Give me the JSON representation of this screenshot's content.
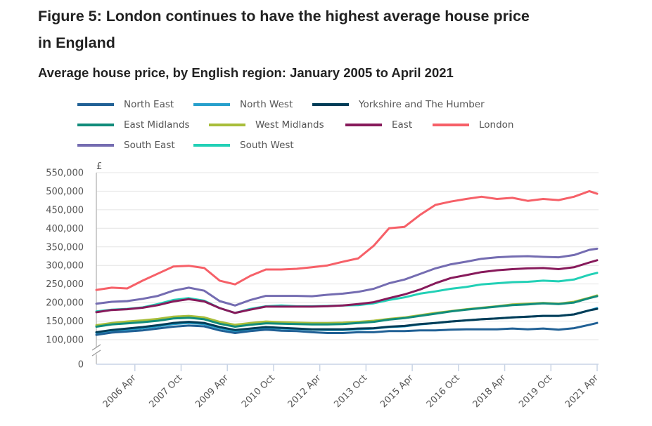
{
  "figure": {
    "title": "Figure 5: London continues to have the highest average house price in England",
    "subtitle": "Average house price, by English region: January 2005 to April 2021"
  },
  "chart_data": {
    "type": "line",
    "title": "Average house price, by English region: January 2005 to April 2021",
    "xlabel": "",
    "ylabel": "£",
    "ylim": [
      0,
      550000
    ],
    "y_axis_break": [
      0,
      100000
    ],
    "yticks": [
      0,
      100000,
      150000,
      200000,
      250000,
      300000,
      350000,
      400000,
      450000,
      500000,
      550000
    ],
    "ytick_labels": [
      "0",
      "100,000",
      "150,000",
      "200,000",
      "250,000",
      "300,000",
      "350,000",
      "400,000",
      "450,000",
      "500,000",
      "550,000"
    ],
    "xrange": [
      "2005 Jan",
      "2021 Apr"
    ],
    "xticks": [
      "2006 Apr",
      "2007 Oct",
      "2009 Apr",
      "2010 Oct",
      "2012 Apr",
      "2013 Oct",
      "2015 Apr",
      "2016 Oct",
      "2018 Apr",
      "2019 Oct",
      "2021 Apr"
    ],
    "grid": true,
    "legend_position": "top",
    "x": [
      "2005 Jan",
      "2005 Jul",
      "2006 Jan",
      "2006 Jul",
      "2007 Jan",
      "2007 Jul",
      "2008 Jan",
      "2008 Jul",
      "2009 Jan",
      "2009 Jul",
      "2010 Jan",
      "2010 Jul",
      "2011 Jan",
      "2011 Jul",
      "2012 Jan",
      "2012 Jul",
      "2013 Jan",
      "2013 Jul",
      "2014 Jan",
      "2014 Jul",
      "2015 Jan",
      "2015 Jul",
      "2016 Jan",
      "2016 Jul",
      "2017 Jan",
      "2017 Jul",
      "2018 Jan",
      "2018 Jul",
      "2019 Jan",
      "2019 Jul",
      "2020 Jan",
      "2020 Jul",
      "2021 Jan",
      "2021 Apr"
    ],
    "series": [
      {
        "name": "North East",
        "color": "#206095",
        "values": [
          113000,
          119000,
          122000,
          125000,
          130000,
          135000,
          138000,
          136000,
          125000,
          118000,
          123000,
          127000,
          124000,
          123000,
          120000,
          118000,
          118000,
          120000,
          120000,
          123000,
          123000,
          125000,
          125000,
          127000,
          128000,
          128000,
          128000,
          130000,
          128000,
          130000,
          127000,
          131000,
          140000,
          145000
        ]
      },
      {
        "name": "North West",
        "color": "#27a0cc",
        "values": [
          118000,
          123000,
          127000,
          131000,
          136000,
          142000,
          145000,
          142000,
          131000,
          123000,
          128000,
          132000,
          130000,
          129000,
          127000,
          126000,
          126000,
          128000,
          130000,
          134000,
          136000,
          141000,
          145000,
          149000,
          152000,
          155000,
          157000,
          160000,
          162000,
          164000,
          164000,
          168000,
          179000,
          185000
        ]
      },
      {
        "name": "Yorkshire and The Humber",
        "color": "#003c57",
        "values": [
          120000,
          126000,
          130000,
          134000,
          139000,
          145000,
          148000,
          145000,
          134000,
          126000,
          130000,
          134000,
          132000,
          130000,
          128000,
          128000,
          128000,
          130000,
          131000,
          135000,
          137000,
          142000,
          145000,
          149000,
          152000,
          155000,
          157000,
          160000,
          162000,
          164000,
          164000,
          168000,
          179000,
          183000
        ]
      },
      {
        "name": "East Midlands",
        "color": "#118c7b",
        "values": [
          135000,
          141000,
          144000,
          147000,
          151000,
          157000,
          159000,
          155000,
          143000,
          135000,
          140000,
          144000,
          143000,
          142000,
          141000,
          141000,
          142000,
          145000,
          148000,
          154000,
          158000,
          164000,
          170000,
          176000,
          181000,
          185000,
          189000,
          193000,
          195000,
          198000,
          196000,
          200000,
          212000,
          217000
        ]
      },
      {
        "name": "West Midlands",
        "color": "#a8bd3a",
        "values": [
          139000,
          145000,
          149000,
          152000,
          156000,
          162000,
          164000,
          160000,
          148000,
          140000,
          145000,
          149000,
          147000,
          146000,
          145000,
          145000,
          146000,
          148000,
          151000,
          156000,
          160000,
          166000,
          172000,
          177000,
          182000,
          186000,
          190000,
          195000,
          197000,
          199000,
          197000,
          202000,
          213000,
          219000
        ]
      },
      {
        "name": "East",
        "color": "#871a5b",
        "values": [
          174000,
          180000,
          182000,
          186000,
          193000,
          203000,
          209000,
          203000,
          185000,
          172000,
          181000,
          189000,
          189000,
          189000,
          189000,
          190000,
          192000,
          196000,
          201000,
          212000,
          222000,
          235000,
          252000,
          266000,
          274000,
          282000,
          287000,
          290000,
          292000,
          293000,
          290000,
          295000,
          308000,
          314000
        ]
      },
      {
        "name": "London",
        "color": "#f66068",
        "values": [
          234000,
          240000,
          238000,
          259000,
          278000,
          297000,
          299000,
          293000,
          259000,
          249000,
          272000,
          289000,
          289000,
          291000,
          295000,
          300000,
          310000,
          319000,
          353000,
          400000,
          404000,
          436000,
          463000,
          472000,
          479000,
          485000,
          479000,
          482000,
          474000,
          479000,
          476000,
          485000,
          500000,
          493000
        ]
      },
      {
        "name": "South East",
        "color": "#746cb1",
        "values": [
          197000,
          202000,
          204000,
          210000,
          218000,
          232000,
          240000,
          232000,
          204000,
          192000,
          207000,
          218000,
          218000,
          218000,
          217000,
          221000,
          224000,
          229000,
          237000,
          252000,
          262000,
          277000,
          292000,
          303000,
          310000,
          318000,
          322000,
          324000,
          325000,
          323000,
          322000,
          328000,
          342000,
          345000
        ]
      },
      {
        "name": "South West",
        "color": "#22d0b6",
        "values": [
          176000,
          181000,
          183000,
          187000,
          196000,
          207000,
          212000,
          205000,
          185000,
          172000,
          183000,
          190000,
          192000,
          190000,
          190000,
          191000,
          192000,
          193000,
          198000,
          207000,
          214000,
          224000,
          230000,
          237000,
          242000,
          249000,
          252000,
          255000,
          256000,
          259000,
          257000,
          262000,
          275000,
          280000
        ]
      }
    ]
  }
}
